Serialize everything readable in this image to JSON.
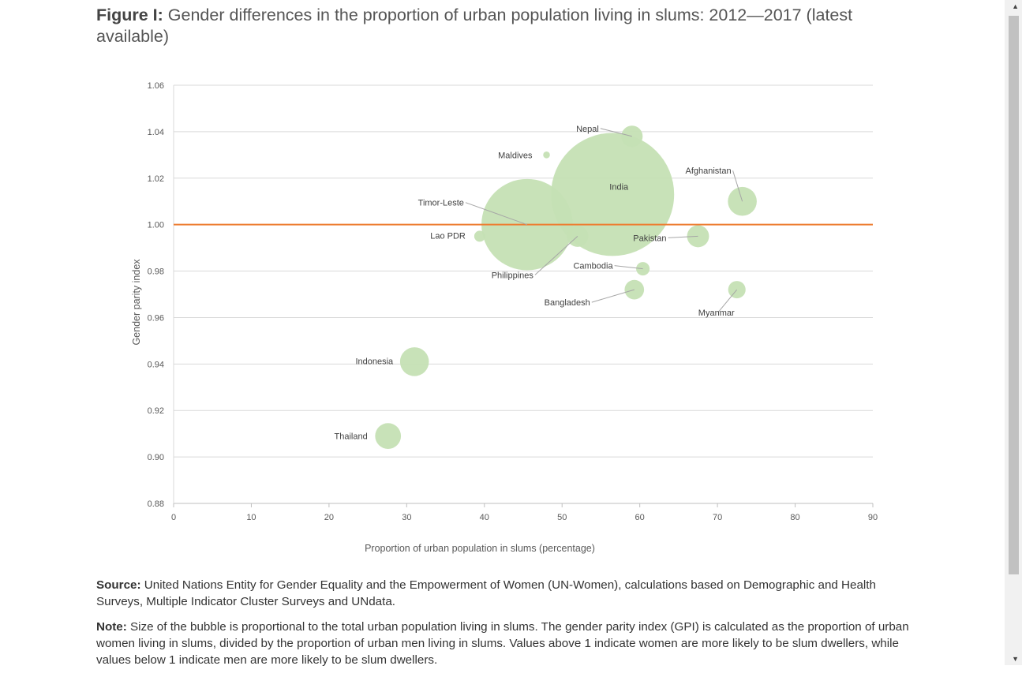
{
  "figure": {
    "title_bold": "Figure I:",
    "title_rest": "Gender differences in the proportion of urban population living in slums: 2012—2017 (latest available)"
  },
  "chart_data": {
    "type": "scatter",
    "subtype": "bubble",
    "xlabel": "Proportion of urban population in slums (percentage)",
    "ylabel": "Gender parity index",
    "xlim": [
      0,
      90
    ],
    "ylim": [
      0.88,
      1.06
    ],
    "xticks": [
      "0",
      "10",
      "20",
      "30",
      "40",
      "50",
      "60",
      "70",
      "80",
      "90"
    ],
    "yticks": [
      "0.88",
      "0.90",
      "0.92",
      "0.94",
      "0.96",
      "0.98",
      "1.00",
      "1.02",
      "1.04",
      "1.06"
    ],
    "grid": true,
    "reference_line": {
      "y": 1.0,
      "color": "#ed7d31"
    },
    "bubble_color": "#c5e0b4",
    "points": [
      {
        "label": "Nepal",
        "x": 59.0,
        "y": 1.038,
        "size": 3.0
      },
      {
        "label": "Maldives",
        "x": 48.0,
        "y": 1.03,
        "size": 0.3
      },
      {
        "label": "India",
        "x": 56.5,
        "y": 1.013,
        "size": 100
      },
      {
        "label": "Afghanistan",
        "x": 73.2,
        "y": 1.01,
        "size": 5.5
      },
      {
        "label": "Timor-Leste",
        "x": 45.5,
        "y": 1.0,
        "size": 55
      },
      {
        "label": "Lao PDR",
        "x": 39.4,
        "y": 0.995,
        "size": 0.8
      },
      {
        "label": "Pakistan",
        "x": 67.5,
        "y": 0.995,
        "size": 3.2
      },
      {
        "label": "Philippines",
        "x": 52.0,
        "y": 0.995,
        "size": 3.0
      },
      {
        "label": "Cambodia",
        "x": 60.4,
        "y": 0.981,
        "size": 1.2
      },
      {
        "label": "Bangladesh",
        "x": 59.3,
        "y": 0.972,
        "size": 2.5
      },
      {
        "label": "Myanmar",
        "x": 72.5,
        "y": 0.972,
        "size": 2.0
      },
      {
        "label": "Indonesia",
        "x": 31.0,
        "y": 0.941,
        "size": 5.5
      },
      {
        "label": "Thailand",
        "x": 27.6,
        "y": 0.909,
        "size": 4.4
      }
    ]
  },
  "notes": {
    "source_label": "Source:",
    "source_text": "United Nations Entity for Gender Equality and the Empowerment of Women (UN-Women), calculations based on Demographic and Health Surveys, Multiple Indicator Cluster Surveys and UNdata.",
    "note_label": "Note:",
    "note_text": "Size of the bubble is proportional to the total urban population living in slums. The gender parity index (GPI) is calculated as the proportion of urban women living in slums, divided by the proportion of urban men living in slums. Values above 1 indicate women are more likely to be slum dwellers, while values below 1 indicate men are more likely to be slum dwellers."
  }
}
